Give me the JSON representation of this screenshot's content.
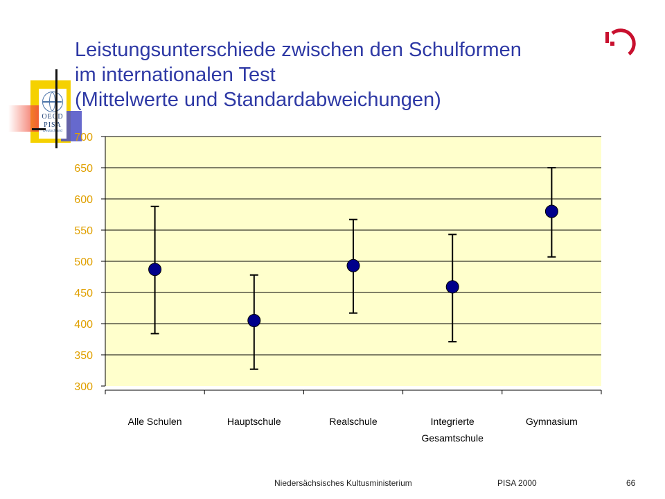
{
  "slide": {
    "title_lines": [
      "Leistungsunterschiede zwischen den Schulformen",
      "im internationalen Test",
      "(Mittelwerte und Standardabweichungen)"
    ],
    "logo": {
      "line1": "OECD",
      "line2": "PISA",
      "line3": "Deutschland"
    },
    "footer": {
      "organization": "Niedersächsisches Kultusministerium",
      "study": "PISA 2000",
      "page_number": "66"
    }
  },
  "colors": {
    "title": "#2e39a5",
    "plot_background": "#ffffcc",
    "point": "#00008b",
    "tick_label": "#e0a000",
    "gridline": "#000000",
    "brand_mark": "#c8102e"
  },
  "chart_data": {
    "type": "scatter",
    "title": "",
    "xlabel": "",
    "ylabel": "",
    "ylim": [
      300,
      700
    ],
    "yticks": [
      300,
      350,
      400,
      450,
      500,
      550,
      600,
      650,
      700
    ],
    "grid": true,
    "legend": "none",
    "categories": [
      [
        "Alle Schulen"
      ],
      [
        "Hauptschule"
      ],
      [
        "Realschule"
      ],
      [
        "Integrierte",
        "Gesamtschule"
      ],
      [
        "Gymnasium"
      ]
    ],
    "series": [
      {
        "values": [
          487,
          405,
          493,
          459,
          580
        ],
        "error_low": [
          384,
          327,
          417,
          371,
          507
        ],
        "error_high": [
          588,
          478,
          567,
          543,
          650
        ]
      }
    ]
  }
}
